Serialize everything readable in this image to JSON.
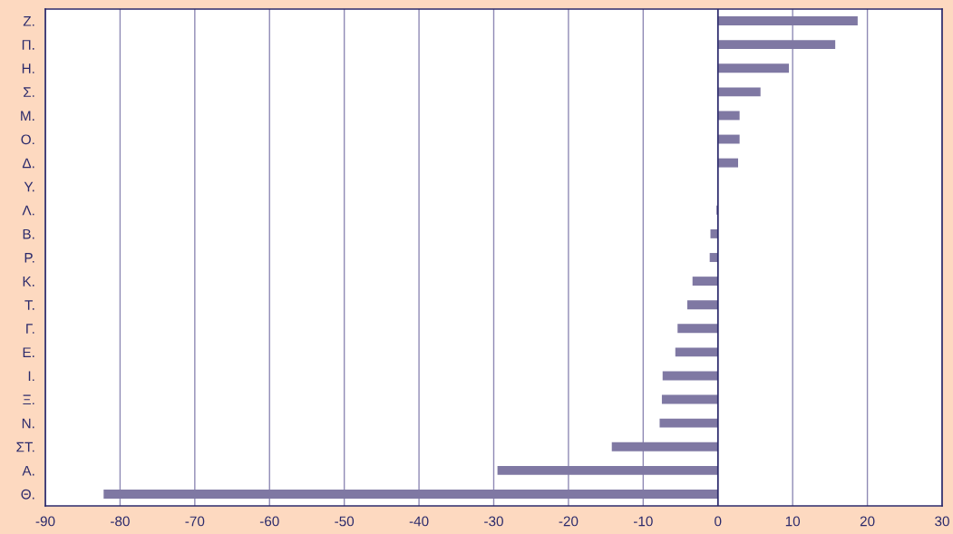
{
  "chart_data": {
    "type": "bar",
    "orientation": "horizontal",
    "categories": [
      "Ζ.",
      "Π.",
      "Η.",
      "Σ.",
      "Μ.",
      "Ο.",
      "Δ.",
      "Υ.",
      "Λ.",
      "Β.",
      "Ρ.",
      "Κ.",
      "Τ.",
      "Γ.",
      "Ε.",
      "Ι.",
      "Ξ.",
      "Ν.",
      "ΣΤ.",
      "Α.",
      "Θ."
    ],
    "values": [
      18.7,
      15.7,
      9.5,
      5.7,
      2.9,
      2.9,
      2.7,
      0,
      -0.2,
      -1.0,
      -1.1,
      -3.4,
      -4.1,
      -5.4,
      -5.7,
      -7.4,
      -7.5,
      -7.8,
      -14.2,
      -29.5,
      -82.2
    ],
    "color": "#7f78a3",
    "xlim": [
      -90,
      30
    ],
    "xticks": [
      -90,
      -80,
      -70,
      -60,
      -50,
      -40,
      -30,
      -20,
      -10,
      0,
      10,
      20,
      30
    ],
    "grid": "x",
    "ref_lines": [
      {
        "axis": "x",
        "value": 0,
        "color": "#2b2a6b"
      }
    ]
  }
}
